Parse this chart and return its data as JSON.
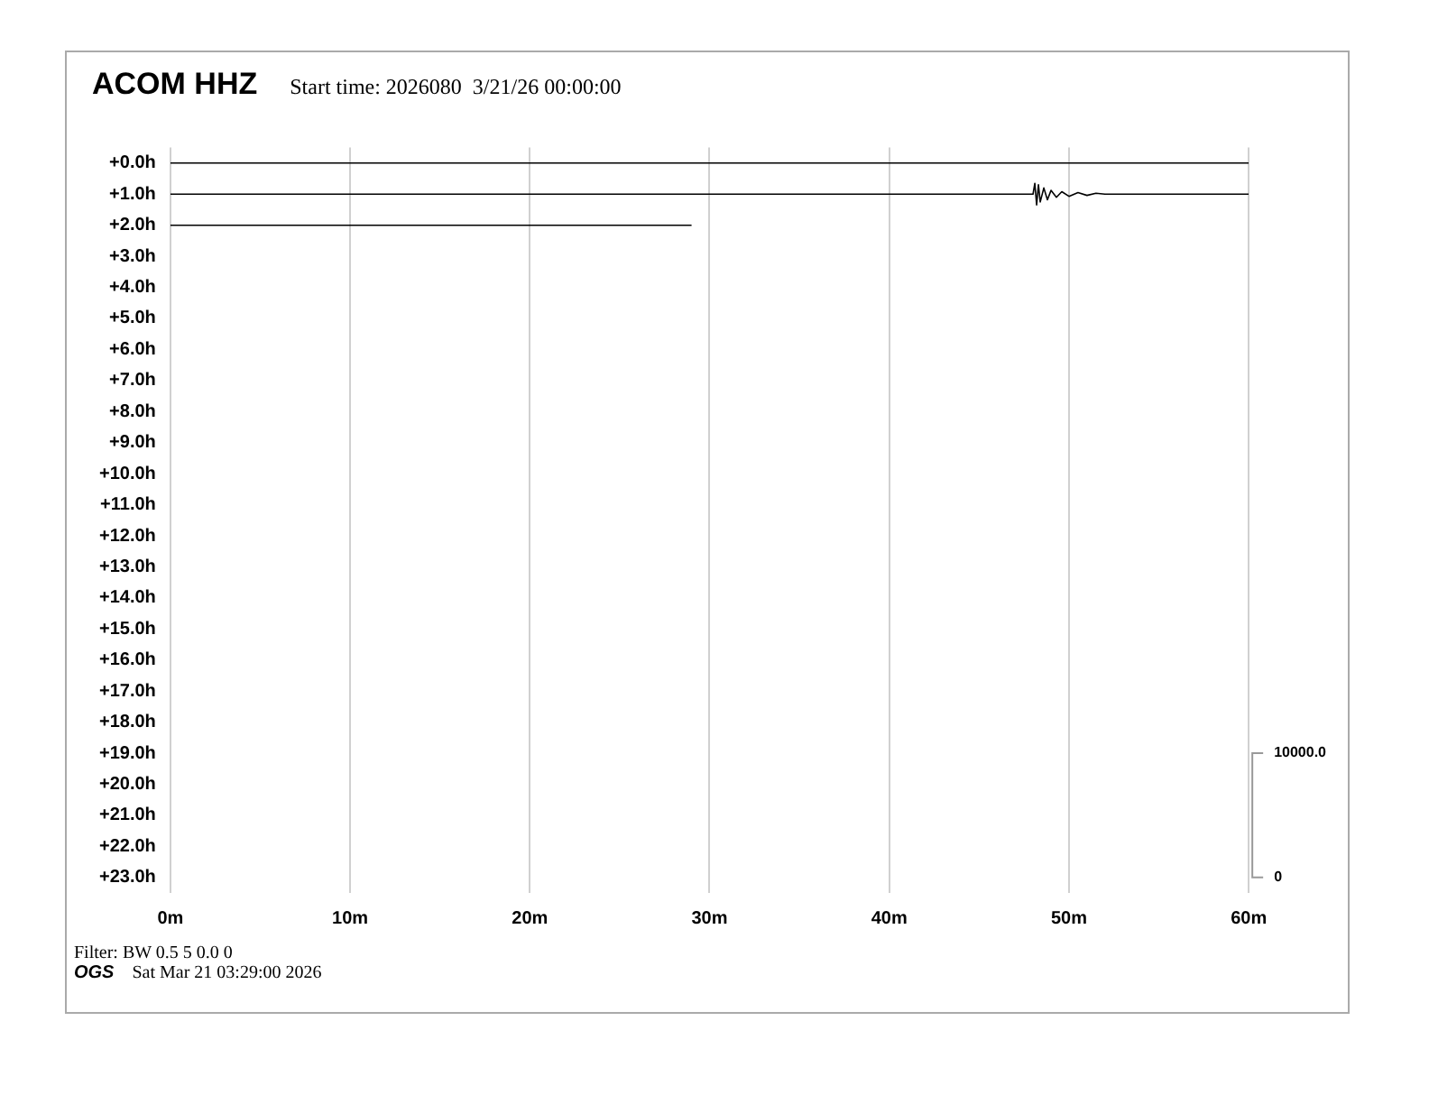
{
  "chart_data": {
    "type": "line",
    "title": "ACOM HHZ",
    "subtitle": "Start time: 2026080  3/21/26 00:00:00",
    "annotations": [
      "Filter: BW 0.5 5 0.0 0",
      "OGS",
      "Sat Mar 21 03:29:00 2026"
    ],
    "xlim": [
      0,
      60
    ],
    "xticks": [
      {
        "value": 0,
        "label": "0m"
      },
      {
        "value": 10,
        "label": "10m"
      },
      {
        "value": 20,
        "label": "20m"
      },
      {
        "value": 30,
        "label": "30m"
      },
      {
        "value": 40,
        "label": "40m"
      },
      {
        "value": 50,
        "label": "50m"
      },
      {
        "value": 60,
        "label": "60m"
      }
    ],
    "ylim": [
      23.5,
      -0.5
    ],
    "yticks": [
      {
        "value": 0,
        "label": "+0.0h"
      },
      {
        "value": 1,
        "label": "+1.0h"
      },
      {
        "value": 2,
        "label": "+2.0h"
      },
      {
        "value": 3,
        "label": "+3.0h"
      },
      {
        "value": 4,
        "label": "+4.0h"
      },
      {
        "value": 5,
        "label": "+5.0h"
      },
      {
        "value": 6,
        "label": "+6.0h"
      },
      {
        "value": 7,
        "label": "+7.0h"
      },
      {
        "value": 8,
        "label": "+8.0h"
      },
      {
        "value": 9,
        "label": "+9.0h"
      },
      {
        "value": 10,
        "label": "+10.0h"
      },
      {
        "value": 11,
        "label": "+11.0h"
      },
      {
        "value": 12,
        "label": "+12.0h"
      },
      {
        "value": 13,
        "label": "+13.0h"
      },
      {
        "value": 14,
        "label": "+14.0h"
      },
      {
        "value": 15,
        "label": "+15.0h"
      },
      {
        "value": 16,
        "label": "+16.0h"
      },
      {
        "value": 17,
        "label": "+17.0h"
      },
      {
        "value": 18,
        "label": "+18.0h"
      },
      {
        "value": 19,
        "label": "+19.0h"
      },
      {
        "value": 20,
        "label": "+20.0h"
      },
      {
        "value": 21,
        "label": "+21.0h"
      },
      {
        "value": 22,
        "label": "+22.0h"
      },
      {
        "value": 23,
        "label": "+23.0h"
      }
    ],
    "y2lim": [
      -1250,
      58750
    ],
    "y2ticks": [
      0,
      {
        "value": 10000,
        "label": "10000.0"
      }
    ],
    "grid": "x",
    "marker": "none",
    "line_style": "solid",
    "series": [
      {
        "color": "#000000",
        "x": [
          0,
          60
        ],
        "values": [
          0,
          0
        ]
      },
      {
        "color": "#000000",
        "x": [
          0,
          48,
          48.1,
          48.2,
          48.3,
          48.4,
          48.6,
          48.8,
          49,
          49.3,
          49.6,
          50,
          50.5,
          51,
          51.5,
          52,
          60
        ],
        "values": [
          1,
          1,
          0.65,
          1.35,
          0.7,
          1.25,
          0.8,
          1.18,
          0.88,
          1.1,
          0.92,
          1.07,
          0.95,
          1.04,
          0.97,
          1,
          1
        ]
      },
      {
        "color": "#000000",
        "x": [
          0,
          29
        ],
        "values": [
          2,
          2
        ]
      }
    ]
  }
}
